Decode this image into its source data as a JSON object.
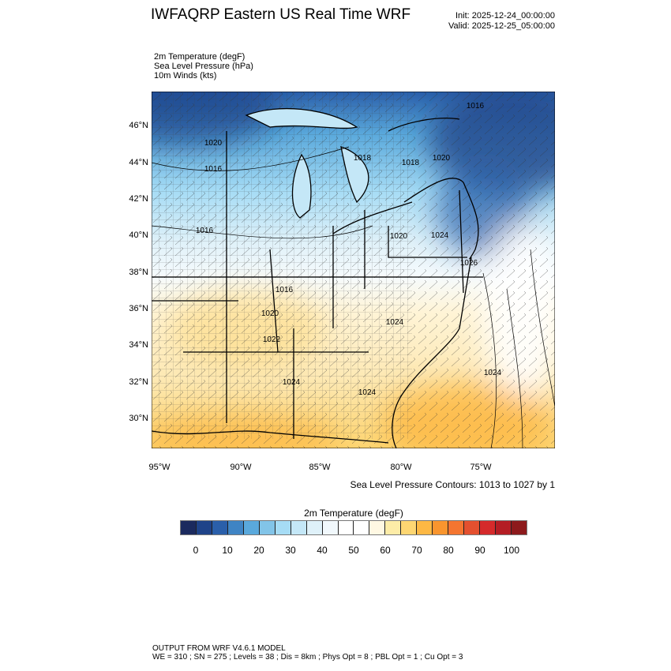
{
  "header": {
    "title": "IWFAQRP Eastern US Real Time WRF",
    "init": "Init: 2025-12-24_00:00:00",
    "valid": "Valid: 2025-12-25_05:00:00"
  },
  "fields": [
    "2m Temperature   (degF)",
    "Sea Level Pressure   (hPa)",
    "10m Winds   (kts)"
  ],
  "map": {
    "lat_labels": [
      "46°N",
      "44°N",
      "42°N",
      "40°N",
      "38°N",
      "36°N",
      "34°N",
      "32°N",
      "30°N"
    ],
    "lon_labels": [
      "95°W",
      "90°W",
      "85°W",
      "80°W",
      "75°W"
    ],
    "contour_labels": [
      "1016",
      "1020",
      "1016",
      "1018",
      "1018",
      "1020",
      "1016",
      "1020",
      "1024",
      "1026",
      "1016",
      "1020",
      "1022",
      "1024",
      "1024",
      "1024",
      "1024"
    ],
    "contour_info": "Sea Level Pressure Contours: 1013 to 1027 by 1"
  },
  "colorbar": {
    "title": "2m Temperature  (degF)",
    "labels": [
      "0",
      "10",
      "20",
      "30",
      "40",
      "50",
      "60",
      "70",
      "80",
      "90",
      "100"
    ],
    "colors": [
      "#1b2a5e",
      "#1f4389",
      "#2a5faa",
      "#3f84c4",
      "#5aa9dc",
      "#82c4e8",
      "#a6dcf5",
      "#c4e7f7",
      "#dff1f9",
      "#f1f8fc",
      "#ffffff",
      "#ffffff",
      "#fff8e3",
      "#fdeca7",
      "#fdd672",
      "#fdb844",
      "#f9952e",
      "#f47530",
      "#e4502f",
      "#d52a2b",
      "#b41d24",
      "#8d1a1c"
    ]
  },
  "footer": {
    "line1": "OUTPUT FROM WRF V4.6.1 MODEL",
    "line2": "WE = 310 ; SN = 275 ; Levels = 38 ; Dis = 8km ; Phys Opt = 8 ; PBL Opt = 1 ; Cu Opt = 3"
  }
}
